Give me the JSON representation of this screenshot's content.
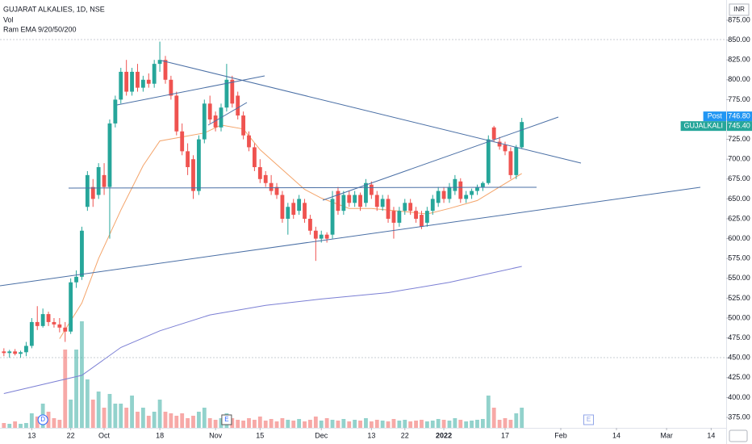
{
  "chart_data": {
    "type": "candlestick",
    "title": "GUJARAT ALKALIES, 1D, NSE",
    "indicators": [
      "Vol",
      "Ram EMA 9/20/50/200"
    ],
    "currency": "INR",
    "up_color": "#26a69a",
    "down_color": "#ef5350",
    "open": [
      458,
      456,
      458,
      455,
      457,
      465,
      495,
      490,
      505,
      495,
      492,
      488,
      483,
      545,
      552,
      640,
      665,
      655,
      680,
      665,
      745,
      775,
      810,
      785,
      810,
      790,
      800,
      795,
      820,
      825,
      800,
      780,
      735,
      710,
      700,
      660,
      725,
      770,
      755,
      740,
      765,
      800,
      780,
      755,
      730,
      715,
      690,
      680,
      670,
      665,
      655,
      625,
      645,
      635,
      645,
      625,
      610,
      600,
      605,
      605,
      660,
      635,
      655,
      645,
      655,
      645,
      668,
      655,
      640,
      650,
      635,
      620,
      635,
      645,
      635,
      630,
      620,
      635,
      645,
      660,
      650,
      660,
      672,
      650,
      655,
      660,
      665,
      670,
      740,
      722,
      718,
      710,
      680,
      715
    ],
    "high": [
      462,
      460,
      461,
      459,
      470,
      500,
      515,
      512,
      508,
      500,
      500,
      495,
      550,
      560,
      615,
      685,
      675,
      695,
      695,
      750,
      780,
      815,
      825,
      815,
      820,
      805,
      808,
      825,
      848,
      830,
      805,
      785,
      745,
      720,
      705,
      730,
      775,
      780,
      760,
      770,
      820,
      805,
      785,
      760,
      735,
      720,
      700,
      685,
      680,
      670,
      660,
      645,
      650,
      655,
      650,
      630,
      615,
      610,
      608,
      660,
      665,
      660,
      660,
      660,
      658,
      675,
      672,
      660,
      655,
      655,
      640,
      640,
      650,
      650,
      640,
      635,
      640,
      655,
      665,
      665,
      670,
      680,
      676,
      660,
      663,
      668,
      672,
      730,
      742,
      728,
      722,
      715,
      718,
      752
    ],
    "low": [
      452,
      450,
      453,
      450,
      452,
      462,
      485,
      488,
      490,
      488,
      482,
      470,
      480,
      538,
      548,
      635,
      640,
      650,
      655,
      600,
      740,
      770,
      780,
      780,
      785,
      785,
      790,
      790,
      810,
      795,
      775,
      730,
      705,
      680,
      650,
      655,
      720,
      745,
      735,
      735,
      760,
      765,
      750,
      725,
      710,
      685,
      670,
      665,
      655,
      650,
      620,
      605,
      625,
      630,
      620,
      605,
      572,
      595,
      595,
      600,
      630,
      630,
      640,
      640,
      635,
      640,
      650,
      635,
      635,
      620,
      600,
      615,
      630,
      630,
      620,
      612,
      615,
      630,
      640,
      645,
      645,
      655,
      645,
      645,
      650,
      655,
      660,
      668,
      722,
      712,
      705,
      675,
      675,
      713
    ],
    "close": [
      456,
      458,
      455,
      457,
      465,
      495,
      490,
      505,
      495,
      492,
      488,
      483,
      545,
      552,
      610,
      680,
      650,
      690,
      665,
      745,
      775,
      810,
      785,
      810,
      790,
      800,
      795,
      820,
      825,
      800,
      780,
      735,
      710,
      690,
      660,
      725,
      770,
      750,
      740,
      765,
      800,
      770,
      755,
      730,
      715,
      690,
      675,
      670,
      660,
      655,
      625,
      640,
      630,
      650,
      625,
      610,
      600,
      605,
      600,
      650,
      635,
      655,
      645,
      655,
      640,
      670,
      655,
      640,
      650,
      625,
      620,
      635,
      645,
      635,
      625,
      615,
      635,
      650,
      660,
      650,
      665,
      675,
      650,
      655,
      660,
      665,
      670,
      725,
      725,
      716,
      710,
      680,
      715,
      746.8
    ],
    "volume": [
      6,
      5,
      8,
      5,
      6,
      18,
      14,
      30,
      20,
      12,
      10,
      97,
      35,
      97,
      132,
      60,
      35,
      45,
      25,
      42,
      30,
      30,
      25,
      40,
      20,
      25,
      15,
      20,
      35,
      20,
      18,
      15,
      18,
      12,
      15,
      20,
      25,
      12,
      10,
      12,
      18,
      12,
      10,
      9,
      12,
      10,
      14,
      9,
      11,
      8,
      12,
      10,
      9,
      11,
      8,
      10,
      14,
      9,
      12,
      10,
      9,
      11,
      8,
      10,
      9,
      12,
      8,
      10,
      9,
      8,
      11,
      9,
      10,
      8,
      9,
      10,
      8,
      9,
      11,
      10,
      9,
      12,
      10,
      8,
      9,
      10,
      11,
      40,
      25,
      10,
      12,
      10,
      18,
      25
    ],
    "ema_lines": [
      {
        "color": "#f4a46a",
        "x": [
          10,
          14,
          17,
          21,
          25,
          28,
          32,
          36,
          39,
          43,
          46,
          50,
          54,
          57,
          62,
          66,
          72,
          76,
          80,
          85,
          89,
          93
        ],
        "values": [
          474,
          519,
          575,
          636,
          692,
          723,
          728,
          733,
          743,
          738,
          712,
          687,
          662,
          651,
          638,
          638,
          634,
          631,
          638,
          648,
          665,
          682
        ]
      },
      {
        "color": "#7b7fd4",
        "x": [
          0,
          14,
          21,
          28,
          37,
          47,
          57,
          69,
          80,
          93
        ],
        "values": [
          405,
          428,
          463,
          484,
          504,
          516,
          524,
          532,
          545,
          565
        ]
      }
    ],
    "xlim": [
      -0.7,
      129.7
    ],
    "xticks": [
      {
        "value": 5,
        "label": "13"
      },
      {
        "value": 12,
        "label": "22"
      },
      {
        "value": 18,
        "label": "Oct"
      },
      {
        "value": 28,
        "label": "18"
      },
      {
        "value": 38,
        "label": "Nov"
      },
      {
        "value": 46,
        "label": "15"
      },
      {
        "value": 57,
        "label": "Dec"
      },
      {
        "value": 66,
        "label": "13"
      },
      {
        "value": 72,
        "label": "22"
      },
      {
        "value": 79,
        "label": "2022"
      },
      {
        "value": 90,
        "label": "17"
      },
      {
        "value": 100,
        "label": "Feb"
      },
      {
        "value": 110,
        "label": "14"
      },
      {
        "value": 119,
        "label": "Mar"
      },
      {
        "value": 127,
        "label": "14"
      }
    ],
    "ylim": [
      361.8,
      900.4
    ],
    "yticks": [
      {
        "value": 375,
        "label": "375.00"
      },
      {
        "value": 400,
        "label": "400.00"
      },
      {
        "value": 425,
        "label": "425.00"
      },
      {
        "value": 450,
        "label": "450.00"
      },
      {
        "value": 475,
        "label": "475.00"
      },
      {
        "value": 500,
        "label": "500.00"
      },
      {
        "value": 525,
        "label": "525.00"
      },
      {
        "value": 550,
        "label": "550.00"
      },
      {
        "value": 575,
        "label": "575.00"
      },
      {
        "value": 600,
        "label": "600.00"
      },
      {
        "value": 625,
        "label": "625.00"
      },
      {
        "value": 650,
        "label": "650.00"
      },
      {
        "value": 675,
        "label": "675.00"
      },
      {
        "value": 700,
        "label": "700.00"
      },
      {
        "value": 725,
        "label": "725.00"
      },
      {
        "value": 750,
        "label": "750.00"
      },
      {
        "value": 775,
        "label": "775.00"
      },
      {
        "value": 800,
        "label": "800.00"
      },
      {
        "value": 825,
        "label": "825.00"
      },
      {
        "value": 850,
        "label": "850.00"
      },
      {
        "value": 875,
        "label": "875.00"
      }
    ],
    "price_tags": [
      {
        "name": "Post",
        "price": "746.80",
        "color": "#2196f3"
      },
      {
        "name": "GUJALKALI",
        "price": "745.40",
        "color": "#26a69a"
      }
    ],
    "event_markers": [
      {
        "label": "D",
        "x": 7
      },
      {
        "label": "E",
        "x": 40
      },
      {
        "label": "E",
        "x": 105
      }
    ]
  }
}
